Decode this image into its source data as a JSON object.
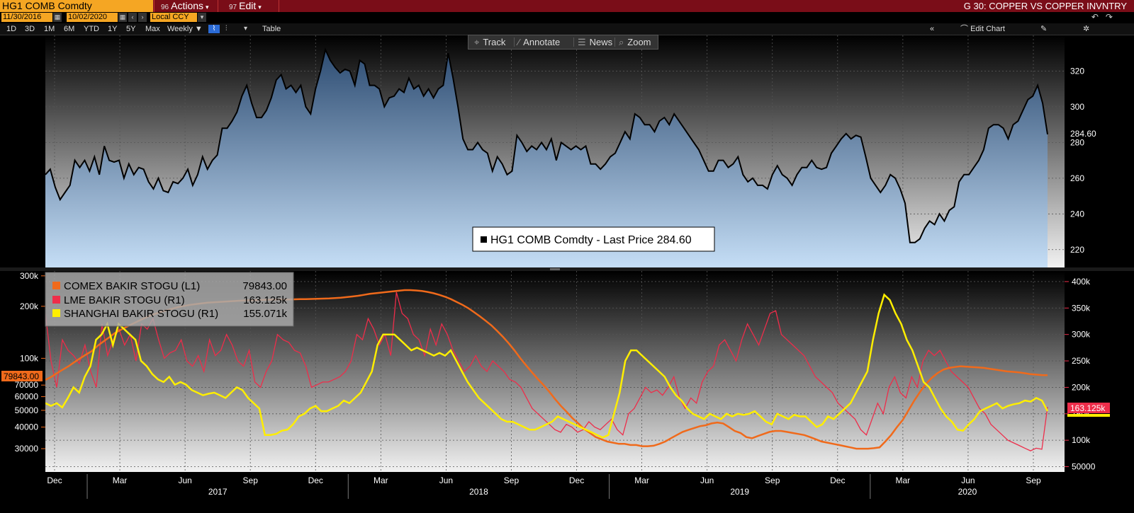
{
  "header": {
    "ticker": "HG1 COMB Comdty",
    "actions_num": "96",
    "actions_label": "Actions",
    "edit_num": "97",
    "edit_label": "Edit",
    "chart_title": "G 30: COPPER VS COPPER INVNTRY",
    "start_date": "11/30/2016",
    "end_date": "10/02/2020",
    "currency": "Local CCY",
    "periods": [
      "1D",
      "3D",
      "1M",
      "6M",
      "YTD",
      "1Y",
      "5Y",
      "Max"
    ],
    "frequency": "Weekly",
    "table_label": "Table",
    "edit_chart_label": "Edit Chart"
  },
  "toolbar": {
    "track": "Track",
    "annotate": "Annotate",
    "news": "News",
    "zoom": "Zoom"
  },
  "colors": {
    "comex": "#f06a1b",
    "lme": "#ee2d4a",
    "shanghai": "#ffee00",
    "price_line": "#000000",
    "title_bar": "#7a0d18",
    "accent": "#f5a623"
  },
  "chart_data": [
    {
      "type": "area",
      "x_axis": "weekly, Nov 2016 - Oct 2020",
      "ylim": [
        210,
        340
      ],
      "y_ticks": [
        220,
        240,
        260,
        280,
        300,
        320
      ],
      "legend": "HG1 COMB Comdty - Last Price 284.60",
      "last_value_label": "284.60",
      "series": [
        {
          "name": "HG1 COMB Comdty - Last Price",
          "values": [
            262,
            265,
            255,
            248,
            252,
            256,
            270,
            266,
            270,
            264,
            272,
            262,
            278,
            270,
            269,
            270,
            260,
            268,
            262,
            266,
            265,
            258,
            254,
            260,
            253,
            252,
            258,
            257,
            260,
            265,
            256,
            262,
            272,
            265,
            270,
            273,
            288,
            288,
            292,
            297,
            306,
            312,
            302,
            294,
            294,
            298,
            305,
            315,
            318,
            310,
            312,
            308,
            312,
            300,
            296,
            310,
            320,
            332,
            326,
            322,
            319,
            321,
            320,
            312,
            326,
            324,
            312,
            312,
            310,
            300,
            305,
            306,
            310,
            308,
            316,
            310,
            312,
            306,
            310,
            305,
            310,
            312,
            330,
            316,
            300,
            282,
            276,
            276,
            280,
            276,
            274,
            264,
            272,
            268,
            262,
            264,
            284,
            280,
            275,
            278,
            276,
            280,
            276,
            282,
            270,
            280,
            278,
            276,
            278,
            276,
            278,
            268,
            268,
            265,
            268,
            272,
            274,
            280,
            286,
            282,
            296,
            294,
            290,
            290,
            286,
            292,
            294,
            290,
            296,
            292,
            288,
            284,
            280,
            276,
            270,
            264,
            264,
            270,
            270,
            266,
            268,
            272,
            262,
            258,
            260,
            256,
            256,
            254,
            262,
            267,
            262,
            260,
            256,
            262,
            266,
            266,
            270,
            266,
            265,
            266,
            274,
            278,
            282,
            285,
            282,
            284,
            283,
            272,
            260,
            256,
            252,
            256,
            262,
            260,
            254,
            246,
            224,
            224,
            226,
            232,
            236,
            234,
            240,
            236,
            242,
            244,
            258,
            262,
            262,
            266,
            270,
            276,
            288,
            290,
            290,
            288,
            282,
            290,
            292,
            298,
            304,
            306,
            312,
            302,
            284.6
          ]
        }
      ]
    },
    {
      "type": "line",
      "x_axis": "weekly, Nov 2016 - Oct 2020",
      "x_ticks": [
        "Dec",
        "Mar",
        "Jun",
        "Sep",
        "Dec",
        "Mar",
        "Jun",
        "Sep",
        "Dec",
        "Mar",
        "Jun",
        "Sep",
        "Dec",
        "Mar",
        "Jun",
        "Sep"
      ],
      "years": [
        "2017",
        "2018",
        "2019",
        "2020"
      ],
      "left_axis": {
        "scale": "log",
        "ylim": [
          22000,
          320000
        ],
        "ticks": [
          "30000",
          "40000",
          "50000",
          "60000",
          "70000",
          "100k",
          "200k",
          "300k"
        ],
        "tick_values": [
          30000,
          40000,
          50000,
          60000,
          70000,
          100000,
          200000,
          300000
        ]
      },
      "right_axis": {
        "scale": "linear",
        "ylim": [
          40000,
          420000
        ],
        "ticks": [
          "50000",
          "100k",
          "150k",
          "200k",
          "250k",
          "300k",
          "350k",
          "400k"
        ],
        "tick_values": [
          50000,
          100000,
          150000,
          200000,
          250000,
          300000,
          350000,
          400000
        ]
      },
      "legend_position": "top-left",
      "series": [
        {
          "name": "COMEX BAKIR STOGU (L1)",
          "last": "79843.00",
          "axis": "left",
          "values": [
            75000,
            78000,
            82000,
            86000,
            90000,
            95000,
            100000,
            105000,
            110000,
            118000,
            125000,
            132000,
            140000,
            146000,
            152000,
            158000,
            164000,
            170000,
            176000,
            181000,
            186000,
            190000,
            194000,
            198000,
            201000,
            204000,
            206000,
            208000,
            210000,
            211000,
            212000,
            213000,
            214000,
            215000,
            216000,
            216500,
            217000,
            217500,
            218000,
            218500,
            219000,
            219000,
            219000,
            219500,
            220000,
            220000,
            220500,
            221000,
            221500,
            222000,
            223000,
            224000,
            226000,
            228000,
            230000,
            233000,
            236000,
            238000,
            240000,
            242000,
            244000,
            246000,
            248000,
            248000,
            247000,
            245000,
            242000,
            238000,
            233000,
            227000,
            220000,
            212000,
            204000,
            195000,
            185000,
            175000,
            165000,
            155000,
            144000,
            133000,
            122000,
            111000,
            100000,
            91000,
            83000,
            76000,
            70000,
            64000,
            58000,
            53000,
            49000,
            45000,
            42000,
            39000,
            37000,
            35000,
            34000,
            33000,
            32500,
            32000,
            32000,
            31500,
            31500,
            31000,
            31000,
            31200,
            32000,
            33000,
            34500,
            36000,
            37500,
            38500,
            39500,
            40500,
            41000,
            42000,
            42500,
            42000,
            40000,
            38000,
            37000,
            35000,
            34500,
            35500,
            36500,
            37500,
            38000,
            38000,
            37500,
            37000,
            36500,
            36000,
            35000,
            34000,
            33000,
            32500,
            32000,
            31500,
            31000,
            30500,
            30000,
            30000,
            30000,
            30200,
            30500,
            33000,
            36000,
            40000,
            44000,
            50000,
            57000,
            64000,
            71000,
            77000,
            82000,
            86000,
            88000,
            89000,
            90000,
            89500,
            89000,
            88500,
            88000,
            87000,
            86000,
            85000,
            84000,
            83500,
            83000,
            82000,
            81000,
            80500,
            80000,
            79843
          ]
        },
        {
          "name": "LME BAKIR STOGU (R1)",
          "last": "163.125k",
          "axis": "right",
          "values": [
            340000,
            250000,
            200000,
            290000,
            270000,
            260000,
            245000,
            280000,
            230000,
            200000,
            320000,
            260000,
            290000,
            310000,
            280000,
            300000,
            250000,
            320000,
            310000,
            330000,
            290000,
            255000,
            265000,
            270000,
            290000,
            250000,
            240000,
            260000,
            230000,
            290000,
            260000,
            270000,
            300000,
            280000,
            250000,
            240000,
            270000,
            210000,
            200000,
            230000,
            250000,
            300000,
            290000,
            285000,
            270000,
            265000,
            240000,
            200000,
            205000,
            210000,
            210000,
            215000,
            220000,
            230000,
            250000,
            300000,
            290000,
            330000,
            310000,
            280000,
            300000,
            260000,
            380000,
            340000,
            330000,
            300000,
            290000,
            260000,
            310000,
            280000,
            320000,
            300000,
            270000,
            250000,
            230000,
            240000,
            260000,
            240000,
            230000,
            250000,
            240000,
            230000,
            215000,
            210000,
            200000,
            180000,
            160000,
            150000,
            140000,
            130000,
            120000,
            115000,
            130000,
            125000,
            115000,
            120000,
            135000,
            125000,
            120000,
            130000,
            140000,
            120000,
            110000,
            150000,
            160000,
            180000,
            200000,
            190000,
            195000,
            185000,
            200000,
            220000,
            180000,
            160000,
            180000,
            170000,
            210000,
            230000,
            240000,
            280000,
            290000,
            270000,
            250000,
            290000,
            320000,
            300000,
            280000,
            310000,
            340000,
            345000,
            300000,
            290000,
            280000,
            270000,
            260000,
            240000,
            220000,
            210000,
            200000,
            190000,
            170000,
            160000,
            150000,
            140000,
            120000,
            110000,
            140000,
            170000,
            150000,
            200000,
            220000,
            190000,
            180000,
            220000,
            200000,
            250000,
            270000,
            260000,
            270000,
            250000,
            230000,
            220000,
            210000,
            200000,
            180000,
            160000,
            150000,
            130000,
            120000,
            110000,
            100000,
            95000,
            90000,
            85000,
            80000,
            85000,
            83000,
            163125
          ]
        },
        {
          "name": "SHANGHAI BAKIR STOGU (R1)",
          "last": "155.071k",
          "axis": "right",
          "values": [
            170000,
            165000,
            170000,
            162000,
            180000,
            200000,
            190000,
            220000,
            240000,
            290000,
            300000,
            320000,
            280000,
            320000,
            310000,
            300000,
            290000,
            250000,
            240000,
            225000,
            215000,
            210000,
            220000,
            205000,
            210000,
            205000,
            195000,
            190000,
            185000,
            188000,
            190000,
            185000,
            180000,
            190000,
            200000,
            195000,
            180000,
            170000,
            160000,
            110000,
            110000,
            112000,
            118000,
            120000,
            130000,
            145000,
            150000,
            160000,
            165000,
            155000,
            155000,
            160000,
            165000,
            175000,
            170000,
            180000,
            190000,
            210000,
            230000,
            280000,
            300000,
            300000,
            300000,
            290000,
            280000,
            270000,
            275000,
            270000,
            265000,
            260000,
            265000,
            260000,
            270000,
            250000,
            230000,
            210000,
            195000,
            180000,
            170000,
            160000,
            150000,
            140000,
            135000,
            135000,
            130000,
            125000,
            120000,
            120000,
            125000,
            130000,
            135000,
            145000,
            140000,
            135000,
            130000,
            125000,
            120000,
            115000,
            110000,
            105000,
            110000,
            150000,
            190000,
            250000,
            270000,
            270000,
            260000,
            250000,
            240000,
            230000,
            220000,
            200000,
            185000,
            175000,
            160000,
            150000,
            145000,
            140000,
            150000,
            145000,
            140000,
            150000,
            145000,
            150000,
            148000,
            150000,
            155000,
            145000,
            135000,
            130000,
            150000,
            145000,
            140000,
            148000,
            145000,
            145000,
            135000,
            125000,
            130000,
            145000,
            140000,
            150000,
            160000,
            170000,
            190000,
            210000,
            230000,
            290000,
            340000,
            375000,
            365000,
            340000,
            320000,
            290000,
            270000,
            240000,
            210000,
            200000,
            180000,
            160000,
            145000,
            135000,
            120000,
            118000,
            130000,
            140000,
            155000,
            160000,
            165000,
            170000,
            160000,
            165000,
            168000,
            170000,
            175000,
            173000,
            180000,
            175000,
            155071
          ]
        }
      ]
    }
  ]
}
